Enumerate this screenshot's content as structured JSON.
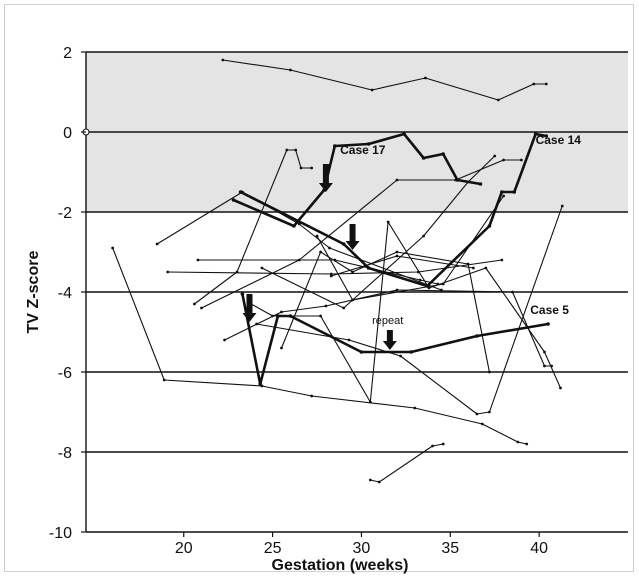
{
  "chart_data": {
    "type": "line",
    "title": "",
    "xlabel": "Gestation (weeks)",
    "ylabel": "TV Z-score",
    "xlim": [
      14.5,
      45
    ],
    "ylim": [
      -10,
      2
    ],
    "x_ticks": [
      20,
      25,
      30,
      35,
      40
    ],
    "y_ticks": [
      2,
      0,
      -2,
      -4,
      -6,
      -8,
      -10
    ],
    "grid": "horizontal lines at even y values",
    "shaded_band": {
      "y_from": -2,
      "y_to": 2,
      "color": "#e4e4e4"
    },
    "colors": {
      "line": "#111111",
      "band": "#e4e4e4",
      "grid": "#111111"
    },
    "annotations": [
      {
        "text": "Case 17",
        "x": 28.8,
        "y": -0.55
      },
      {
        "text": "Case 14",
        "x": 39.8,
        "y": -0.3
      },
      {
        "text": "Case 5",
        "x": 39.5,
        "y": -4.55
      },
      {
        "text": "repeat",
        "x": 30.6,
        "y": -4.8
      }
    ],
    "arrows": [
      {
        "x": 28.0,
        "y_from": -0.8,
        "y_to": -1.5
      },
      {
        "x": 29.5,
        "y_from": -2.3,
        "y_to": -2.95
      },
      {
        "x": 23.7,
        "y_from": -4.05,
        "y_to": -4.75
      },
      {
        "x": 31.6,
        "y_from": -4.95,
        "y_to": -5.45
      }
    ],
    "series": [
      {
        "points": [
          [
            22.2,
            1.8
          ],
          [
            26.0,
            1.55
          ],
          [
            30.6,
            1.05
          ],
          [
            33.6,
            1.35
          ],
          [
            37.7,
            0.8
          ],
          [
            39.7,
            1.2
          ],
          [
            40.4,
            1.2
          ]
        ],
        "bold": false
      },
      {
        "points": [
          [
            22.8,
            -1.7
          ],
          [
            26.2,
            -2.35
          ],
          [
            27.9,
            -1.45
          ],
          [
            28.5,
            -0.35
          ],
          [
            30.4,
            -0.3
          ],
          [
            32.4,
            -0.05
          ],
          [
            33.5,
            -0.65
          ],
          [
            34.6,
            -0.55
          ],
          [
            35.4,
            -1.2
          ],
          [
            36.7,
            -1.3
          ]
        ],
        "bold": true
      },
      {
        "points": [
          [
            23.2,
            -1.5
          ],
          [
            29.0,
            -2.8
          ],
          [
            30.4,
            -3.4
          ],
          [
            33.7,
            -3.85
          ],
          [
            37.2,
            -2.35
          ],
          [
            37.9,
            -1.5
          ],
          [
            38.6,
            -1.5
          ],
          [
            39.8,
            -0.05
          ],
          [
            40.4,
            -0.1
          ]
        ],
        "bold": true
      },
      {
        "points": [
          [
            23.3,
            -4.05
          ],
          [
            24.3,
            -6.3
          ],
          [
            25.3,
            -4.6
          ],
          [
            26.0,
            -4.6
          ],
          [
            30.0,
            -5.5
          ],
          [
            32.8,
            -5.5
          ],
          [
            36.5,
            -5.1
          ],
          [
            40.5,
            -4.8
          ]
        ],
        "bold": true
      },
      {
        "points": [
          [
            18.5,
            -2.8
          ],
          [
            23.3,
            -1.5
          ],
          [
            26.5,
            -2.3
          ],
          [
            28.2,
            -2.9
          ],
          [
            34.5,
            -3.95
          ]
        ],
        "bold": false
      },
      {
        "points": [
          [
            16.0,
            -2.9
          ],
          [
            18.9,
            -6.2
          ],
          [
            24.4,
            -6.35
          ],
          [
            27.2,
            -6.6
          ],
          [
            33.0,
            -6.9
          ],
          [
            36.8,
            -7.3
          ],
          [
            38.8,
            -7.75
          ],
          [
            39.3,
            -7.8
          ]
        ],
        "bold": false
      },
      {
        "points": [
          [
            20.6,
            -4.3
          ],
          [
            23.0,
            -3.5
          ],
          [
            25.8,
            -0.45
          ],
          [
            26.3,
            -0.45
          ],
          [
            26.6,
            -0.9
          ],
          [
            27.2,
            -0.9
          ]
        ],
        "bold": false
      },
      {
        "points": [
          [
            21.0,
            -4.4
          ],
          [
            26.5,
            -3.2
          ],
          [
            32.0,
            -1.2
          ],
          [
            35.3,
            -1.2
          ],
          [
            38.0,
            -0.7
          ],
          [
            39.0,
            -0.7
          ]
        ],
        "bold": false
      },
      {
        "points": [
          [
            19.1,
            -3.5
          ],
          [
            28.3,
            -3.55
          ],
          [
            33.2,
            -3.5
          ],
          [
            37.9,
            -3.2
          ]
        ],
        "bold": false
      },
      {
        "points": [
          [
            20.8,
            -3.2
          ],
          [
            28.5,
            -3.2
          ],
          [
            33.3,
            -3.7
          ],
          [
            34.3,
            -3.8
          ]
        ],
        "bold": false
      },
      {
        "points": [
          [
            22.3,
            -5.2
          ],
          [
            25.5,
            -4.5
          ],
          [
            28.0,
            -4.35
          ],
          [
            32.0,
            -3.95
          ],
          [
            38.5,
            -4.0
          ],
          [
            40.3,
            -5.85
          ],
          [
            40.7,
            -5.85
          ]
        ],
        "bold": false
      },
      {
        "points": [
          [
            24.1,
            -4.8
          ],
          [
            29.3,
            -5.2
          ],
          [
            32.2,
            -5.6
          ],
          [
            36.5,
            -7.05
          ],
          [
            37.2,
            -7.0
          ],
          [
            41.3,
            -1.85
          ]
        ],
        "bold": false
      },
      {
        "points": [
          [
            23.8,
            -4.3
          ],
          [
            25.0,
            -4.6
          ],
          [
            27.7,
            -4.6
          ],
          [
            30.5,
            -6.75
          ],
          [
            31.5,
            -2.25
          ],
          [
            33.8,
            -3.9
          ],
          [
            37.0,
            -3.4
          ],
          [
            40.3,
            -5.5
          ],
          [
            41.2,
            -6.4
          ]
        ],
        "bold": false
      },
      {
        "points": [
          [
            25.5,
            -5.4
          ],
          [
            27.7,
            -3.0
          ],
          [
            29.5,
            -3.5
          ],
          [
            32.0,
            -3.0
          ],
          [
            36.0,
            -3.3
          ],
          [
            37.2,
            -6.0
          ]
        ],
        "bold": false
      },
      {
        "points": [
          [
            24.4,
            -3.4
          ],
          [
            29.0,
            -4.4
          ],
          [
            33.5,
            -2.6
          ],
          [
            36.0,
            -1.25
          ],
          [
            37.5,
            -0.6
          ]
        ],
        "bold": false
      },
      {
        "points": [
          [
            28.3,
            -3.6
          ],
          [
            32.0,
            -3.1
          ],
          [
            36.3,
            -3.4
          ]
        ],
        "bold": false
      },
      {
        "points": [
          [
            30.5,
            -8.7
          ],
          [
            31.0,
            -8.75
          ],
          [
            34.0,
            -7.85
          ],
          [
            34.6,
            -7.8
          ]
        ],
        "bold": false
      },
      {
        "points": [
          [
            27.5,
            -2.6
          ],
          [
            29.5,
            -4.2
          ],
          [
            34.6,
            -3.8
          ],
          [
            38.0,
            -1.6
          ]
        ],
        "bold": false
      }
    ]
  }
}
